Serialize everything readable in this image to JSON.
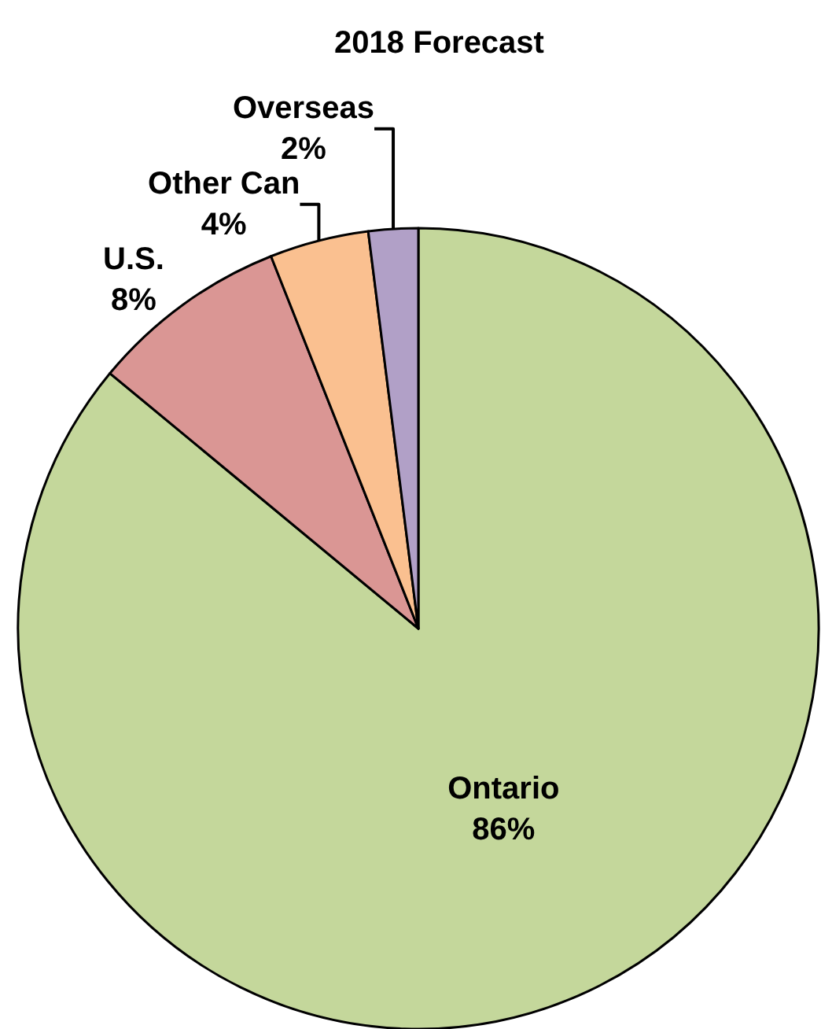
{
  "chart_data": {
    "type": "pie",
    "title": "2018 Forecast",
    "categories": [
      "Ontario",
      "U.S.",
      "Other Can",
      "Overseas"
    ],
    "values": [
      86,
      8,
      4,
      2
    ],
    "value_labels": [
      "86%",
      "8%",
      "4%",
      "2%"
    ],
    "colors": [
      "#c4d79b",
      "#da9694",
      "#fac090",
      "#b1a0c7"
    ],
    "legend": false
  }
}
